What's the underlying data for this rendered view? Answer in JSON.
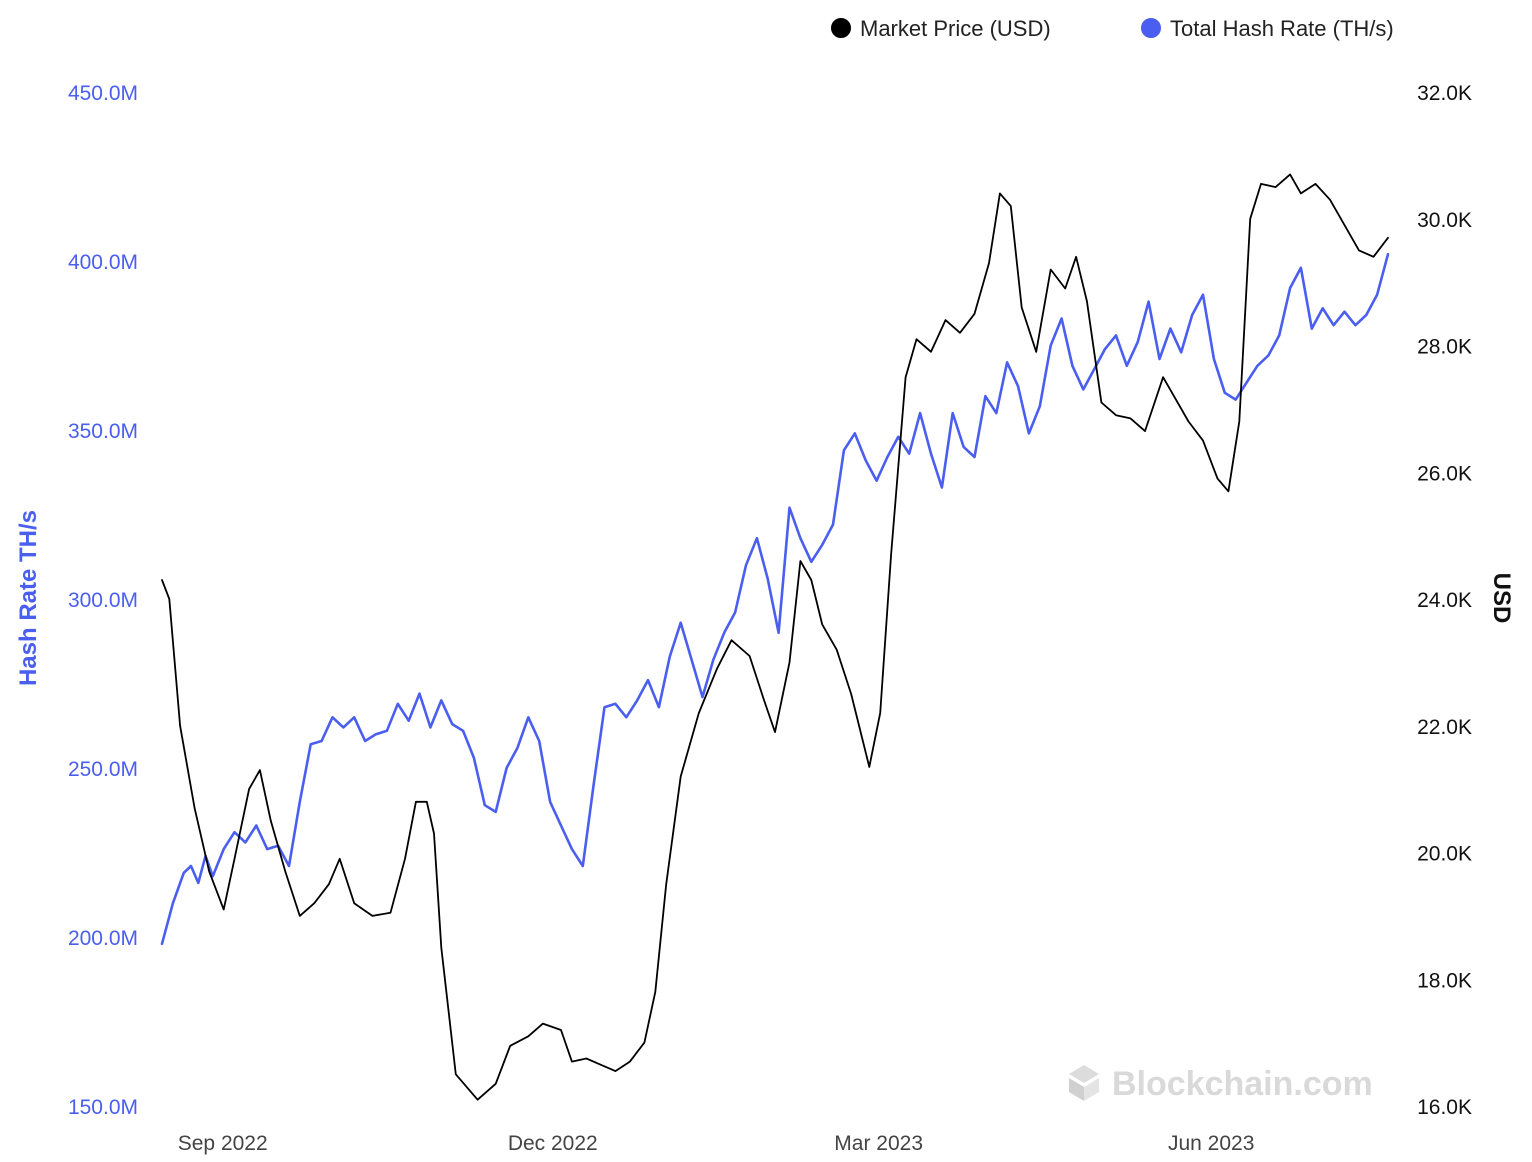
{
  "chart_data": {
    "type": "line",
    "legend": {
      "placement": "top-right",
      "items": [
        {
          "label": "Market Price (USD)",
          "color": "#000000"
        },
        {
          "label": "Total Hash Rate (TH/s)",
          "color": "#4a5ef0"
        }
      ]
    },
    "y_left": {
      "label": "Hash Rate TH/s",
      "color": "#4a5ef0",
      "range": [
        150000000,
        450000000
      ],
      "ticks": [
        {
          "value": 450000000,
          "label": "450.0M"
        },
        {
          "value": 400000000,
          "label": "400.0M"
        },
        {
          "value": 350000000,
          "label": "350.0M"
        },
        {
          "value": 300000000,
          "label": "300.0M"
        },
        {
          "value": 250000000,
          "label": "250.0M"
        },
        {
          "value": 200000000,
          "label": "200.0M"
        },
        {
          "value": 150000000,
          "label": "150.0M"
        }
      ]
    },
    "y_right": {
      "label": "USD",
      "color": "#000000",
      "range": [
        16000,
        32000
      ],
      "ticks": [
        {
          "value": 32000,
          "label": "32.0K"
        },
        {
          "value": 30000,
          "label": "30.0K"
        },
        {
          "value": 28000,
          "label": "28.0K"
        },
        {
          "value": 26000,
          "label": "26.0K"
        },
        {
          "value": 24000,
          "label": "24.0K"
        },
        {
          "value": 22000,
          "label": "22.0K"
        },
        {
          "value": 20000,
          "label": "20.0K"
        },
        {
          "value": 18000,
          "label": "18.0K"
        },
        {
          "value": 16000,
          "label": "16.0K"
        }
      ]
    },
    "x_axis": {
      "range": [
        "2022-08-26",
        "2023-07-30"
      ],
      "ticks": [
        {
          "value": "2022-09-01",
          "label": "Sep 2022"
        },
        {
          "value": "2022-12-01",
          "label": "Dec 2022"
        },
        {
          "value": "2023-03-01",
          "label": "Mar 2023"
        },
        {
          "value": "2023-06-01",
          "label": "Jun 2023"
        }
      ]
    },
    "grid": false,
    "series": [
      {
        "name": "Market Price (USD)",
        "axis": "right",
        "color": "#000000",
        "points": [
          [
            "2022-08-26",
            24300
          ],
          [
            "2022-08-28",
            24000
          ],
          [
            "2022-08-31",
            22000
          ],
          [
            "2022-09-04",
            20700
          ],
          [
            "2022-09-08",
            19700
          ],
          [
            "2022-09-12",
            19100
          ],
          [
            "2022-09-15",
            19900
          ],
          [
            "2022-09-19",
            21000
          ],
          [
            "2022-09-22",
            21300
          ],
          [
            "2022-09-25",
            20500
          ],
          [
            "2022-09-29",
            19700
          ],
          [
            "2022-10-03",
            19000
          ],
          [
            "2022-10-07",
            19200
          ],
          [
            "2022-10-11",
            19500
          ],
          [
            "2022-10-14",
            19900
          ],
          [
            "2022-10-18",
            19200
          ],
          [
            "2022-10-23",
            19000
          ],
          [
            "2022-10-28",
            19050
          ],
          [
            "2022-11-01",
            19900
          ],
          [
            "2022-11-04",
            20800
          ],
          [
            "2022-11-07",
            20800
          ],
          [
            "2022-11-09",
            20300
          ],
          [
            "2022-11-11",
            18500
          ],
          [
            "2022-11-15",
            16500
          ],
          [
            "2022-11-21",
            16100
          ],
          [
            "2022-11-26",
            16350
          ],
          [
            "2022-11-30",
            16950
          ],
          [
            "2022-12-05",
            17100
          ],
          [
            "2022-12-09",
            17300
          ],
          [
            "2022-12-14",
            17200
          ],
          [
            "2022-12-17",
            16700
          ],
          [
            "2022-12-21",
            16750
          ],
          [
            "2022-12-25",
            16650
          ],
          [
            "2022-12-29",
            16550
          ],
          [
            "2023-01-02",
            16700
          ],
          [
            "2023-01-06",
            17000
          ],
          [
            "2023-01-09",
            17800
          ],
          [
            "2023-01-12",
            19500
          ],
          [
            "2023-01-16",
            21200
          ],
          [
            "2023-01-21",
            22200
          ],
          [
            "2023-01-26",
            22900
          ],
          [
            "2023-01-30",
            23350
          ],
          [
            "2023-02-04",
            23100
          ],
          [
            "2023-02-08",
            22400
          ],
          [
            "2023-02-11",
            21900
          ],
          [
            "2023-02-15",
            23000
          ],
          [
            "2023-02-18",
            24600
          ],
          [
            "2023-02-21",
            24300
          ],
          [
            "2023-02-24",
            23600
          ],
          [
            "2023-02-28",
            23200
          ],
          [
            "2023-03-04",
            22500
          ],
          [
            "2023-03-09",
            21350
          ],
          [
            "2023-03-12",
            22200
          ],
          [
            "2023-03-15",
            24700
          ],
          [
            "2023-03-19",
            27500
          ],
          [
            "2023-03-22",
            28100
          ],
          [
            "2023-03-26",
            27900
          ],
          [
            "2023-03-30",
            28400
          ],
          [
            "2023-04-03",
            28200
          ],
          [
            "2023-04-07",
            28500
          ],
          [
            "2023-04-11",
            29300
          ],
          [
            "2023-04-14",
            30400
          ],
          [
            "2023-04-17",
            30200
          ],
          [
            "2023-04-20",
            28600
          ],
          [
            "2023-04-24",
            27900
          ],
          [
            "2023-04-28",
            29200
          ],
          [
            "2023-05-02",
            28900
          ],
          [
            "2023-05-05",
            29400
          ],
          [
            "2023-05-08",
            28700
          ],
          [
            "2023-05-12",
            27100
          ],
          [
            "2023-05-16",
            26900
          ],
          [
            "2023-05-20",
            26850
          ],
          [
            "2023-05-24",
            26650
          ],
          [
            "2023-05-29",
            27500
          ],
          [
            "2023-06-01",
            27200
          ],
          [
            "2023-06-05",
            26800
          ],
          [
            "2023-06-09",
            26500
          ],
          [
            "2023-06-13",
            25900
          ],
          [
            "2023-06-16",
            25700
          ],
          [
            "2023-06-19",
            26800
          ],
          [
            "2023-06-22",
            30000
          ],
          [
            "2023-06-25",
            30550
          ],
          [
            "2023-06-29",
            30500
          ],
          [
            "2023-07-03",
            30700
          ],
          [
            "2023-07-06",
            30400
          ],
          [
            "2023-07-10",
            30550
          ],
          [
            "2023-07-14",
            30300
          ],
          [
            "2023-07-18",
            29900
          ],
          [
            "2023-07-22",
            29500
          ],
          [
            "2023-07-26",
            29400
          ],
          [
            "2023-07-30",
            29700
          ]
        ]
      },
      {
        "name": "Total Hash Rate (TH/s)",
        "axis": "left",
        "color": "#4a5ef0",
        "points": [
          [
            "2022-08-26",
            198000000
          ],
          [
            "2022-08-29",
            210000000
          ],
          [
            "2022-09-01",
            219000000
          ],
          [
            "2022-09-03",
            221000000
          ],
          [
            "2022-09-05",
            216000000
          ],
          [
            "2022-09-07",
            224000000
          ],
          [
            "2022-09-09",
            218000000
          ],
          [
            "2022-09-12",
            226000000
          ],
          [
            "2022-09-15",
            231000000
          ],
          [
            "2022-09-18",
            228000000
          ],
          [
            "2022-09-21",
            233000000
          ],
          [
            "2022-09-24",
            226000000
          ],
          [
            "2022-09-27",
            227000000
          ],
          [
            "2022-09-30",
            221000000
          ],
          [
            "2022-10-03",
            240000000
          ],
          [
            "2022-10-06",
            257000000
          ],
          [
            "2022-10-09",
            258000000
          ],
          [
            "2022-10-12",
            265000000
          ],
          [
            "2022-10-15",
            262000000
          ],
          [
            "2022-10-18",
            265000000
          ],
          [
            "2022-10-21",
            258000000
          ],
          [
            "2022-10-24",
            260000000
          ],
          [
            "2022-10-27",
            261000000
          ],
          [
            "2022-10-30",
            269000000
          ],
          [
            "2022-11-02",
            264000000
          ],
          [
            "2022-11-05",
            272000000
          ],
          [
            "2022-11-08",
            262000000
          ],
          [
            "2022-11-11",
            270000000
          ],
          [
            "2022-11-14",
            263000000
          ],
          [
            "2022-11-17",
            261000000
          ],
          [
            "2022-11-20",
            253000000
          ],
          [
            "2022-11-23",
            239000000
          ],
          [
            "2022-11-26",
            237000000
          ],
          [
            "2022-11-29",
            250000000
          ],
          [
            "2022-12-02",
            256000000
          ],
          [
            "2022-12-05",
            265000000
          ],
          [
            "2022-12-08",
            258000000
          ],
          [
            "2022-12-11",
            240000000
          ],
          [
            "2022-12-14",
            233000000
          ],
          [
            "2022-12-17",
            226000000
          ],
          [
            "2022-12-20",
            221000000
          ],
          [
            "2022-12-23",
            245000000
          ],
          [
            "2022-12-26",
            268000000
          ],
          [
            "2022-12-29",
            269000000
          ],
          [
            "2023-01-01",
            265000000
          ],
          [
            "2023-01-04",
            270000000
          ],
          [
            "2023-01-07",
            276000000
          ],
          [
            "2023-01-10",
            268000000
          ],
          [
            "2023-01-13",
            283000000
          ],
          [
            "2023-01-16",
            293000000
          ],
          [
            "2023-01-19",
            282000000
          ],
          [
            "2023-01-22",
            271000000
          ],
          [
            "2023-01-25",
            282000000
          ],
          [
            "2023-01-28",
            290000000
          ],
          [
            "2023-01-31",
            296000000
          ],
          [
            "2023-02-03",
            310000000
          ],
          [
            "2023-02-06",
            318000000
          ],
          [
            "2023-02-09",
            306000000
          ],
          [
            "2023-02-12",
            290000000
          ],
          [
            "2023-02-15",
            327000000
          ],
          [
            "2023-02-18",
            318000000
          ],
          [
            "2023-02-21",
            311000000
          ],
          [
            "2023-02-24",
            316000000
          ],
          [
            "2023-02-27",
            322000000
          ],
          [
            "2023-03-02",
            344000000
          ],
          [
            "2023-03-05",
            349000000
          ],
          [
            "2023-03-08",
            341000000
          ],
          [
            "2023-03-11",
            335000000
          ],
          [
            "2023-03-14",
            342000000
          ],
          [
            "2023-03-17",
            348000000
          ],
          [
            "2023-03-20",
            343000000
          ],
          [
            "2023-03-23",
            355000000
          ],
          [
            "2023-03-26",
            343000000
          ],
          [
            "2023-03-29",
            333000000
          ],
          [
            "2023-04-01",
            355000000
          ],
          [
            "2023-04-04",
            345000000
          ],
          [
            "2023-04-07",
            342000000
          ],
          [
            "2023-04-10",
            360000000
          ],
          [
            "2023-04-13",
            355000000
          ],
          [
            "2023-04-16",
            370000000
          ],
          [
            "2023-04-19",
            363000000
          ],
          [
            "2023-04-22",
            349000000
          ],
          [
            "2023-04-25",
            357000000
          ],
          [
            "2023-04-28",
            375000000
          ],
          [
            "2023-05-01",
            383000000
          ],
          [
            "2023-05-04",
            369000000
          ],
          [
            "2023-05-07",
            362000000
          ],
          [
            "2023-05-10",
            368000000
          ],
          [
            "2023-05-13",
            374000000
          ],
          [
            "2023-05-16",
            378000000
          ],
          [
            "2023-05-19",
            369000000
          ],
          [
            "2023-05-22",
            376000000
          ],
          [
            "2023-05-25",
            388000000
          ],
          [
            "2023-05-28",
            371000000
          ],
          [
            "2023-05-31",
            380000000
          ],
          [
            "2023-06-03",
            373000000
          ],
          [
            "2023-06-06",
            384000000
          ],
          [
            "2023-06-09",
            390000000
          ],
          [
            "2023-06-12",
            371000000
          ],
          [
            "2023-06-15",
            361000000
          ],
          [
            "2023-06-18",
            359000000
          ],
          [
            "2023-06-21",
            364000000
          ],
          [
            "2023-06-24",
            369000000
          ],
          [
            "2023-06-27",
            372000000
          ],
          [
            "2023-06-30",
            378000000
          ],
          [
            "2023-07-03",
            392000000
          ],
          [
            "2023-07-06",
            398000000
          ],
          [
            "2023-07-09",
            380000000
          ],
          [
            "2023-07-12",
            386000000
          ],
          [
            "2023-07-15",
            381000000
          ],
          [
            "2023-07-18",
            385000000
          ],
          [
            "2023-07-21",
            381000000
          ],
          [
            "2023-07-24",
            384000000
          ],
          [
            "2023-07-27",
            390000000
          ],
          [
            "2023-07-30",
            402000000
          ]
        ]
      }
    ]
  },
  "watermark": {
    "text": "Blockchain.com",
    "icon": "blockchain-logo-icon"
  }
}
